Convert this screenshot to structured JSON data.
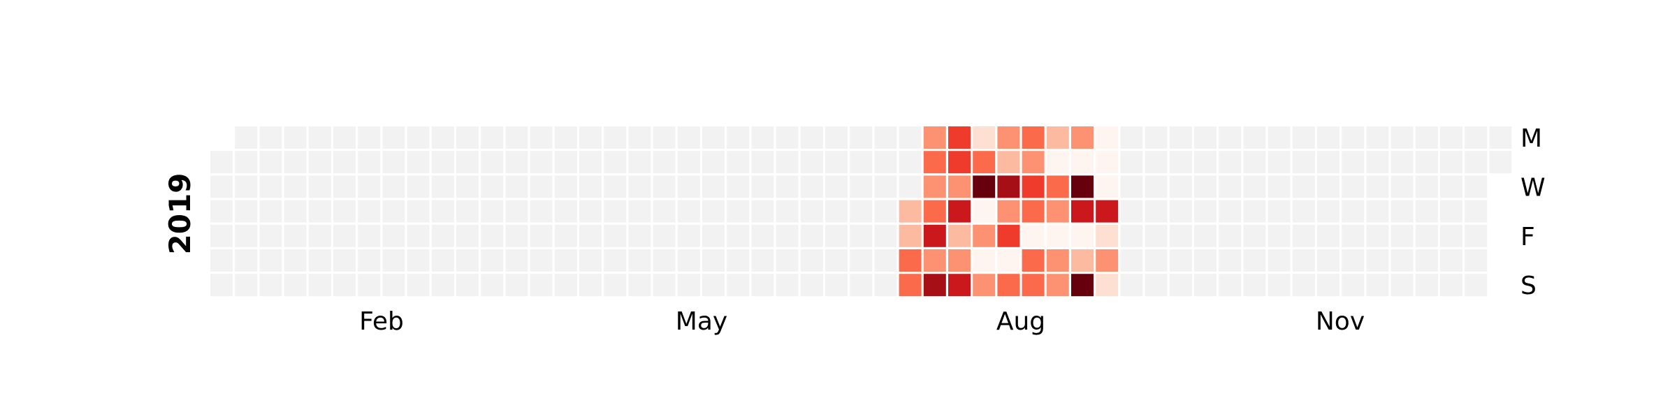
{
  "chart_data": {
    "type": "heatmap",
    "year": "2019",
    "x_tick_labels": [
      "Feb",
      "May",
      "Aug",
      "Nov"
    ],
    "y_tick_labels": [
      "M",
      "W",
      "F",
      "S"
    ],
    "y_tick_rows": [
      0,
      2,
      4,
      6
    ],
    "empty_color": "#f2f2f2",
    "colormap": "Reds",
    "colormap_stops": [
      "#fff5f0",
      "#fee0d2",
      "#fcbba1",
      "#fc9272",
      "#fb6a4a",
      "#ef3b2c",
      "#cb181d",
      "#a50f15",
      "#67000d"
    ],
    "first_day_row": 1,
    "days_in_year": 365,
    "active_data": {
      "description": "level 0-8 per active cell; columns index weeks of 2019",
      "columns": {
        "28": [
          null,
          null,
          null,
          2,
          2,
          4,
          4
        ],
        "29": [
          3,
          4,
          3,
          4,
          6,
          3,
          7
        ],
        "30": [
          5,
          5,
          3,
          6,
          2,
          3,
          6
        ],
        "31": [
          1,
          4,
          8,
          0,
          3,
          0,
          3
        ],
        "32": [
          3,
          2,
          7,
          3,
          5,
          0,
          4
        ],
        "33": [
          4,
          3,
          5,
          4,
          0,
          4,
          4
        ],
        "34": [
          2,
          0,
          4,
          3,
          0,
          3,
          3
        ],
        "35": [
          3,
          0,
          8,
          6,
          0,
          2,
          8
        ],
        "36": [
          0,
          0,
          0,
          6,
          1,
          3,
          1
        ]
      }
    }
  }
}
